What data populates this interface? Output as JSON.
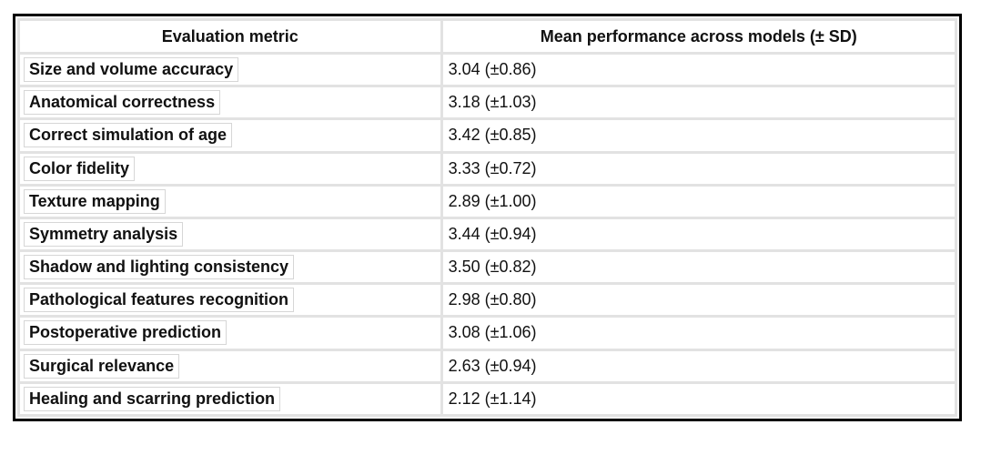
{
  "table": {
    "headers": {
      "metric": "Evaluation metric",
      "performance": "Mean performance across models (± SD)"
    },
    "rows": [
      {
        "metric": "Size and volume accuracy",
        "value": "3.04 (±0.86)"
      },
      {
        "metric": "Anatomical correctness",
        "value": "3.18 (±1.03)"
      },
      {
        "metric": "Correct simulation of age",
        "value": "3.42 (±0.85)"
      },
      {
        "metric": "Color fidelity",
        "value": "3.33 (±0.72)"
      },
      {
        "metric": "Texture mapping",
        "value": "2.89 (±1.00)"
      },
      {
        "metric": "Symmetry analysis",
        "value": "3.44 (±0.94)"
      },
      {
        "metric": "Shadow and lighting consistency",
        "value": "3.50 (±0.82)"
      },
      {
        "metric": "Pathological features recognition",
        "value": "2.98 (±0.80)"
      },
      {
        "metric": "Postoperative prediction",
        "value": "3.08 (±1.06)"
      },
      {
        "metric": "Surgical relevance",
        "value": "2.63 (±0.94)"
      },
      {
        "metric": "Healing and scarring prediction",
        "value": "2.12 (±1.14)"
      }
    ],
    "colors": {
      "outer_border": "#000000",
      "gridline": "#e2e2e2",
      "label_box_border": "#d6d6d6",
      "text": "#111111",
      "background": "#ffffff"
    }
  },
  "chart_data": {
    "type": "table",
    "title": "",
    "columns": [
      "Evaluation metric",
      "Mean performance across models (± SD)"
    ],
    "categories": [
      "Size and volume accuracy",
      "Anatomical correctness",
      "Correct simulation of age",
      "Color fidelity",
      "Texture mapping",
      "Symmetry analysis",
      "Shadow and lighting consistency",
      "Pathological features recognition",
      "Postoperative prediction",
      "Surgical relevance",
      "Healing and scarring prediction"
    ],
    "series": [
      {
        "name": "Mean",
        "values": [
          3.04,
          3.18,
          3.42,
          3.33,
          2.89,
          3.44,
          3.5,
          2.98,
          3.08,
          2.63,
          2.12
        ]
      },
      {
        "name": "SD",
        "values": [
          0.86,
          1.03,
          0.85,
          0.72,
          1.0,
          0.94,
          0.82,
          0.8,
          1.06,
          0.94,
          1.14
        ]
      }
    ]
  }
}
